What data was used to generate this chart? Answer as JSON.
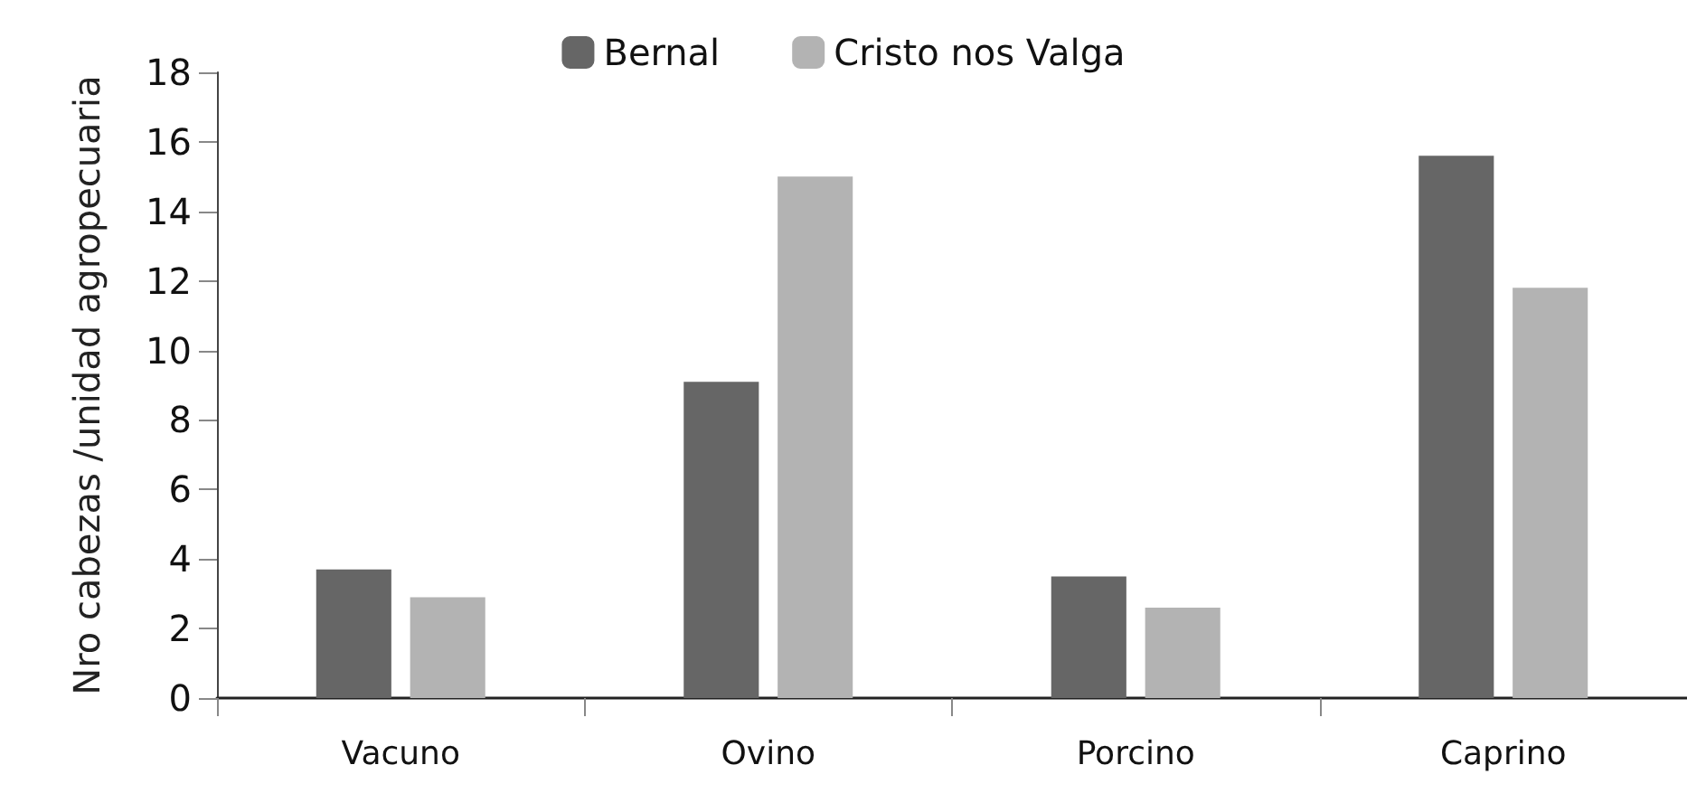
{
  "chart_data": {
    "type": "bar",
    "ylabel": "Nro cabezas /unidad agropecuaria",
    "categories": [
      "Vacuno",
      "Ovino",
      "Porcino",
      "Caprino"
    ],
    "series": [
      {
        "name": "Bernal",
        "color": "#666666",
        "values": [
          3.7,
          9.1,
          3.5,
          15.6
        ]
      },
      {
        "name": "Cristo nos Valga",
        "color": "#b3b3b3",
        "values": [
          2.9,
          15.0,
          2.6,
          11.8
        ]
      }
    ],
    "ylim": [
      0,
      18
    ],
    "yticks": [
      0,
      2,
      4,
      6,
      8,
      10,
      12,
      14,
      16,
      18
    ],
    "grid": false,
    "legend": "top"
  }
}
